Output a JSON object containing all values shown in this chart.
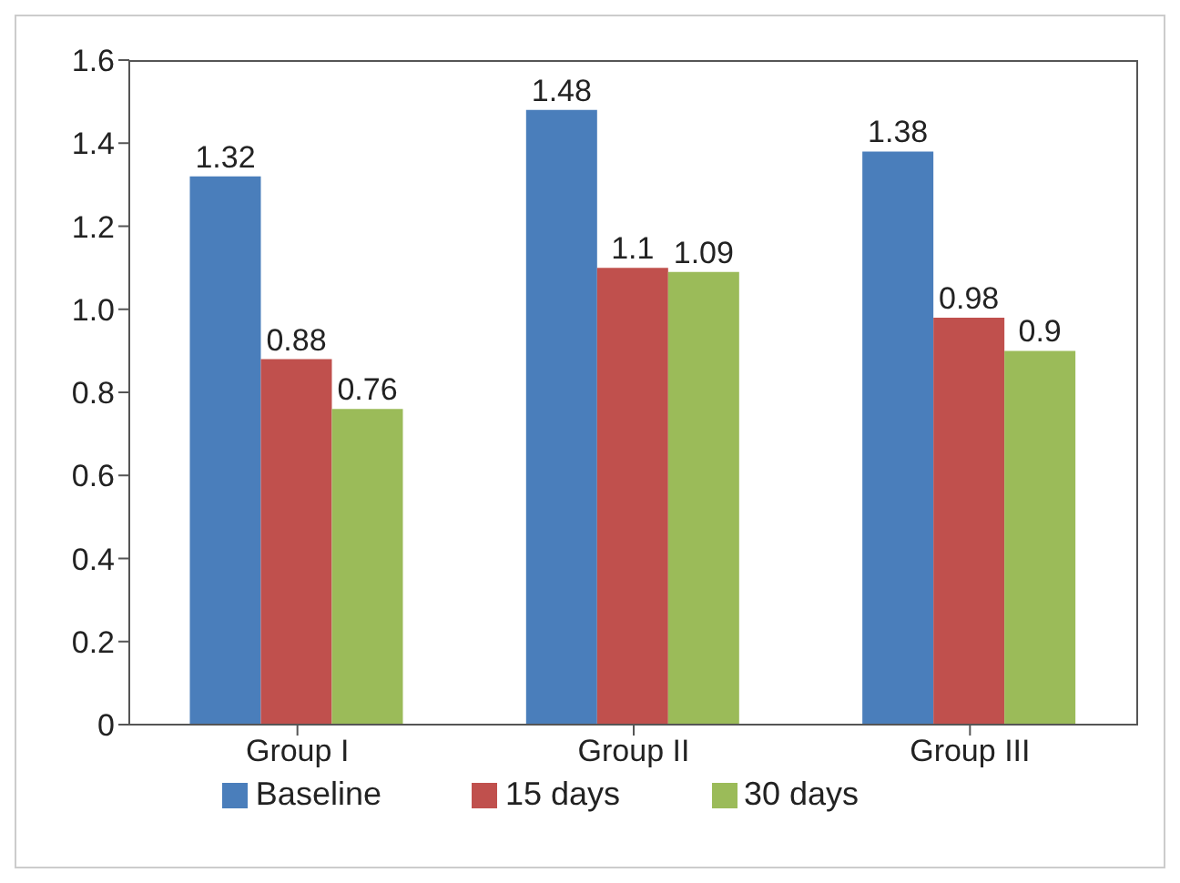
{
  "chart_data": {
    "type": "bar",
    "categories": [
      "Group I",
      "Group II",
      "Group III"
    ],
    "series": [
      {
        "name": "Baseline",
        "color": "#4a7ebb",
        "values": [
          1.32,
          1.48,
          1.38
        ]
      },
      {
        "name": "15 days",
        "color": "#c0504d",
        "values": [
          0.88,
          1.1,
          0.98
        ]
      },
      {
        "name": "30 days",
        "color": "#9bbb59",
        "values": [
          0.76,
          1.09,
          0.9
        ]
      }
    ],
    "ylim": [
      0,
      1.6
    ],
    "yticks": [
      0,
      0.2,
      0.4,
      0.6,
      0.8,
      {
        "value": 1,
        "label": "1.0"
      },
      1.2,
      1.4,
      1.6
    ],
    "data_labels": true,
    "grid": false,
    "legend": "bottom"
  }
}
